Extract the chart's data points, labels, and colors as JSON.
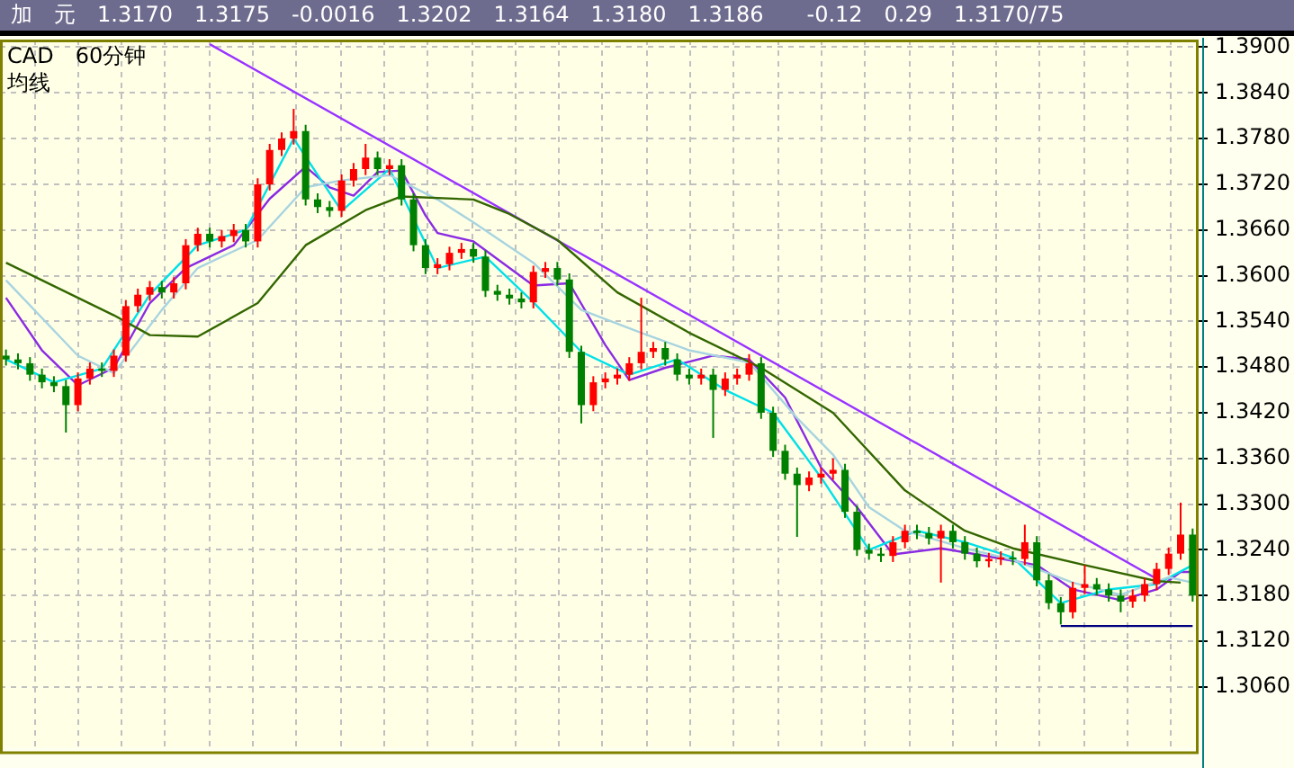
{
  "chart_data": {
    "type": "candlestick",
    "title": "加　元　1.3170　1.3175　-0.0016　1.3202　1.3164　1.3180　1.3186　　-0.12　0.29　1.3170/75",
    "annotations": [
      "CAD　60分钟",
      "均线"
    ],
    "categories": [
      null,
      null,
      null,
      null,
      null,
      null,
      null,
      null,
      null,
      null,
      null,
      null,
      null,
      null,
      null,
      null,
      null,
      null,
      null,
      null,
      null,
      null,
      null,
      null,
      null,
      null,
      null,
      null,
      null,
      null,
      null,
      null,
      null,
      null,
      null,
      null,
      null,
      null,
      null,
      null,
      null,
      null,
      null,
      null,
      null,
      null,
      null,
      null,
      null,
      null,
      null,
      null,
      null,
      null,
      null,
      null,
      null,
      null,
      null,
      null,
      null,
      null,
      null,
      null,
      null,
      null,
      null,
      null,
      null,
      null,
      null,
      null,
      null,
      null,
      null,
      null,
      null,
      null,
      null,
      null,
      null,
      null,
      null,
      null,
      null,
      null,
      null,
      null,
      null,
      null,
      null,
      null,
      null,
      null,
      null,
      null,
      null,
      null,
      null,
      null
    ],
    "ohlc": [
      [
        1.3495,
        1.3503,
        1.3482,
        1.349
      ],
      [
        1.349,
        1.3498,
        1.3477,
        1.3485
      ],
      [
        1.3485,
        1.3493,
        1.3462,
        1.347
      ],
      [
        1.347,
        1.3478,
        1.3452,
        1.346
      ],
      [
        1.346,
        1.3468,
        1.3447,
        1.3455
      ],
      [
        1.3455,
        1.3463,
        1.3394,
        1.343
      ],
      [
        1.343,
        1.3473,
        1.3422,
        1.3465
      ],
      [
        1.3465,
        1.3486,
        1.3457,
        1.3478
      ],
      [
        1.3478,
        1.3486,
        1.3467,
        1.3475
      ],
      [
        1.3475,
        1.3503,
        1.3467,
        1.3495
      ],
      [
        1.3495,
        1.3568,
        1.3487,
        1.356
      ],
      [
        1.356,
        1.3583,
        1.3552,
        1.3575
      ],
      [
        1.3575,
        1.3593,
        1.3567,
        1.3585
      ],
      [
        1.3585,
        1.3593,
        1.357,
        1.3578
      ],
      [
        1.3578,
        1.3598,
        1.357,
        1.359
      ],
      [
        1.359,
        1.3648,
        1.3582,
        1.364
      ],
      [
        1.364,
        1.3663,
        1.3632,
        1.3655
      ],
      [
        1.3655,
        1.3663,
        1.3637,
        1.3645
      ],
      [
        1.3645,
        1.366,
        1.3637,
        1.3652
      ],
      [
        1.3652,
        1.3668,
        1.3644,
        1.366
      ],
      [
        1.366,
        1.3668,
        1.3637,
        1.3645
      ],
      [
        1.3645,
        1.3728,
        1.3637,
        1.372
      ],
      [
        1.372,
        1.3773,
        1.3712,
        1.3765
      ],
      [
        1.3765,
        1.3788,
        1.3757,
        1.378
      ],
      [
        1.378,
        1.3819,
        1.3772,
        1.379
      ],
      [
        1.379,
        1.3798,
        1.3692,
        1.37
      ],
      [
        1.37,
        1.3708,
        1.3682,
        1.369
      ],
      [
        1.369,
        1.3698,
        1.3677,
        1.3685
      ],
      [
        1.3685,
        1.3733,
        1.3677,
        1.3725
      ],
      [
        1.3725,
        1.3748,
        1.3717,
        1.374
      ],
      [
        1.374,
        1.3773,
        1.3732,
        1.3755
      ],
      [
        1.3755,
        1.3763,
        1.3732,
        1.374
      ],
      [
        1.374,
        1.3753,
        1.3732,
        1.3745
      ],
      [
        1.3745,
        1.3753,
        1.3692,
        1.37
      ],
      [
        1.37,
        1.3708,
        1.3632,
        1.364
      ],
      [
        1.364,
        1.3648,
        1.3602,
        1.361
      ],
      [
        1.361,
        1.3623,
        1.3602,
        1.3615
      ],
      [
        1.3615,
        1.3638,
        1.3607,
        1.363
      ],
      [
        1.363,
        1.3643,
        1.3622,
        1.3635
      ],
      [
        1.3635,
        1.3643,
        1.3617,
        1.3625
      ],
      [
        1.3625,
        1.3633,
        1.3572,
        1.358
      ],
      [
        1.358,
        1.3588,
        1.3567,
        1.3575
      ],
      [
        1.3575,
        1.3583,
        1.3562,
        1.357
      ],
      [
        1.357,
        1.3578,
        1.3557,
        1.3565
      ],
      [
        1.3565,
        1.3613,
        1.3557,
        1.3605
      ],
      [
        1.3605,
        1.3618,
        1.3597,
        1.361
      ],
      [
        1.361,
        1.3618,
        1.3587,
        1.3595
      ],
      [
        1.3595,
        1.3603,
        1.3492,
        1.35
      ],
      [
        1.35,
        1.3508,
        1.3406,
        1.343
      ],
      [
        1.343,
        1.3468,
        1.3422,
        1.346
      ],
      [
        1.346,
        1.3473,
        1.3452,
        1.3465
      ],
      [
        1.3465,
        1.3478,
        1.3457,
        1.347
      ],
      [
        1.347,
        1.3493,
        1.3462,
        1.3485
      ],
      [
        1.3485,
        1.3571,
        1.3477,
        1.35
      ],
      [
        1.35,
        1.3513,
        1.3492,
        1.3505
      ],
      [
        1.3505,
        1.3513,
        1.3482,
        1.349
      ],
      [
        1.349,
        1.3498,
        1.3462,
        1.347
      ],
      [
        1.347,
        1.3478,
        1.3457,
        1.3465
      ],
      [
        1.3465,
        1.3478,
        1.3457,
        1.347
      ],
      [
        1.347,
        1.3478,
        1.3387,
        1.345
      ],
      [
        1.345,
        1.3473,
        1.3442,
        1.3465
      ],
      [
        1.3465,
        1.3478,
        1.3457,
        1.347
      ],
      [
        1.347,
        1.3497,
        1.3462,
        1.3485
      ],
      [
        1.3485,
        1.3493,
        1.3412,
        1.342
      ],
      [
        1.342,
        1.3428,
        1.3362,
        1.337
      ],
      [
        1.337,
        1.3378,
        1.3332,
        1.334
      ],
      [
        1.334,
        1.3348,
        1.3257,
        1.3325
      ],
      [
        1.3325,
        1.3343,
        1.3317,
        1.3335
      ],
      [
        1.3335,
        1.3348,
        1.3327,
        1.334
      ],
      [
        1.334,
        1.336,
        1.3332,
        1.3345
      ],
      [
        1.3345,
        1.3353,
        1.3282,
        1.329
      ],
      [
        1.329,
        1.3298,
        1.3232,
        1.324
      ],
      [
        1.324,
        1.3248,
        1.3227,
        1.3235
      ],
      [
        1.3235,
        1.3243,
        1.3224,
        1.3232
      ],
      [
        1.3232,
        1.3258,
        1.3224,
        1.325
      ],
      [
        1.325,
        1.3273,
        1.3242,
        1.3265
      ],
      [
        1.3265,
        1.3273,
        1.3254,
        1.3262
      ],
      [
        1.3262,
        1.327,
        1.3247,
        1.3255
      ],
      [
        1.3255,
        1.3273,
        1.3197,
        1.3265
      ],
      [
        1.3265,
        1.3273,
        1.3242,
        1.325
      ],
      [
        1.325,
        1.3258,
        1.3227,
        1.3235
      ],
      [
        1.3235,
        1.3243,
        1.3217,
        1.3225
      ],
      [
        1.3225,
        1.3236,
        1.3217,
        1.3228
      ],
      [
        1.3228,
        1.3238,
        1.322,
        1.323
      ],
      [
        1.323,
        1.3238,
        1.322,
        1.3228
      ],
      [
        1.3228,
        1.3273,
        1.322,
        1.325
      ],
      [
        1.325,
        1.3258,
        1.3192,
        1.32
      ],
      [
        1.32,
        1.3208,
        1.3162,
        1.317
      ],
      [
        1.317,
        1.3178,
        1.3142,
        1.3158
      ],
      [
        1.3158,
        1.3198,
        1.315,
        1.319
      ],
      [
        1.319,
        1.322,
        1.3182,
        1.3195
      ],
      [
        1.3195,
        1.3203,
        1.318,
        1.3188
      ],
      [
        1.3188,
        1.3196,
        1.3172,
        1.318
      ],
      [
        1.318,
        1.3188,
        1.3158,
        1.3172
      ],
      [
        1.3172,
        1.3188,
        1.3164,
        1.318
      ],
      [
        1.318,
        1.3203,
        1.3172,
        1.3195
      ],
      [
        1.3195,
        1.3223,
        1.3187,
        1.3215
      ],
      [
        1.3215,
        1.3243,
        1.3207,
        1.3235
      ],
      [
        1.3235,
        1.3302,
        1.3227,
        1.326
      ],
      [
        1.326,
        1.3268,
        1.3172,
        1.318
      ]
    ],
    "colors": [
      "#008000",
      "#008000",
      "#008000",
      "#008000",
      "#008000",
      "#008000",
      "#ff0000",
      "#ff0000",
      "#008000",
      "#ff0000",
      "#ff0000",
      "#ff0000",
      "#ff0000",
      "#008000",
      "#ff0000",
      "#ff0000",
      "#ff0000",
      "#008000",
      "#ff0000",
      "#ff0000",
      "#008000",
      "#ff0000",
      "#ff0000",
      "#ff0000",
      "#ff0000",
      "#008000",
      "#008000",
      "#008000",
      "#ff0000",
      "#ff0000",
      "#ff0000",
      "#008000",
      "#ff0000",
      "#008000",
      "#008000",
      "#008000",
      "#ff0000",
      "#ff0000",
      "#ff0000",
      "#008000",
      "#008000",
      "#008000",
      "#008000",
      "#008000",
      "#ff0000",
      "#ff0000",
      "#008000",
      "#008000",
      "#008000",
      "#ff0000",
      "#ff0000",
      "#ff0000",
      "#ff0000",
      "#ff0000",
      "#ff0000",
      "#008000",
      "#008000",
      "#008000",
      "#ff0000",
      "#008000",
      "#ff0000",
      "#ff0000",
      "#ff0000",
      "#008000",
      "#008000",
      "#008000",
      "#008000",
      "#ff0000",
      "#ff0000",
      "#ff0000",
      "#008000",
      "#008000",
      "#008000",
      "#008000",
      "#ff0000",
      "#ff0000",
      "#008000",
      "#008000",
      "#ff0000",
      "#008000",
      "#008000",
      "#008000",
      "#ff0000",
      "#ff0000",
      "#008000",
      "#ff0000",
      "#008000",
      "#008000",
      "#008000",
      "#ff0000",
      "#ff0000",
      "#008000",
      "#008000",
      "#008000",
      "#ff0000",
      "#ff0000",
      "#ff0000",
      "#ff0000",
      "#ff0000",
      "#008000"
    ],
    "series": [
      {
        "type": "line",
        "color": "#336600",
        "values": [
          1.3617,
          null,
          null,
          null,
          null,
          null,
          null,
          null,
          null,
          1.3548,
          null,
          null,
          1.3522,
          null,
          null,
          null,
          1.352,
          null,
          null,
          null,
          null,
          1.3564,
          null,
          null,
          null,
          1.364,
          null,
          null,
          null,
          null,
          1.3686,
          null,
          null,
          1.3704,
          null,
          null,
          null,
          null,
          null,
          1.37,
          null,
          null,
          1.3681,
          null,
          null,
          null,
          1.3647,
          null,
          null,
          null,
          null,
          1.3578,
          null,
          null,
          null,
          null,
          null,
          1.3525,
          null,
          null,
          null,
          null,
          null,
          1.3479,
          null,
          null,
          null,
          null,
          null,
          1.342,
          null,
          null,
          null,
          null,
          null,
          1.3318,
          null,
          null,
          null,
          null,
          1.3265,
          null,
          null,
          null,
          1.3242,
          null,
          null,
          null,
          null,
          null,
          1.322,
          null,
          null,
          null,
          null,
          null,
          1.3199,
          null,
          1.3197,
          null
        ]
      },
      {
        "type": "line",
        "color": "#a8d4e0",
        "values": [
          1.3594,
          null,
          null,
          null,
          null,
          null,
          1.3495,
          null,
          null,
          1.3472,
          null,
          null,
          null,
          1.3555,
          null,
          null,
          1.361,
          null,
          null,
          null,
          null,
          1.3647,
          null,
          null,
          null,
          1.3716,
          null,
          null,
          1.3725,
          null,
          null,
          null,
          1.3732,
          null,
          null,
          null,
          1.37,
          null,
          null,
          1.367,
          null,
          null,
          null,
          null,
          1.3617,
          null,
          null,
          null,
          1.3555,
          null,
          null,
          null,
          null,
          1.3525,
          null,
          null,
          null,
          1.3502,
          null,
          null,
          null,
          null,
          1.3486,
          null,
          null,
          null,
          1.3413,
          null,
          null,
          1.3365,
          null,
          null,
          1.3296,
          null,
          null,
          1.3265,
          null,
          null,
          null,
          null,
          1.3242,
          null,
          null,
          null,
          1.3227,
          null,
          null,
          null,
          null,
          1.3197,
          null,
          null,
          null,
          1.3181,
          null,
          null,
          null,
          1.3204,
          null,
          1.3197
        ]
      },
      {
        "type": "line",
        "color": "#00e0e8",
        "values": [
          1.349,
          null,
          null,
          null,
          1.346,
          null,
          null,
          null,
          1.3478,
          null,
          null,
          null,
          1.3575,
          null,
          null,
          null,
          1.364,
          null,
          null,
          null,
          1.366,
          null,
          null,
          null,
          1.378,
          null,
          null,
          null,
          1.3685,
          null,
          null,
          null,
          1.374,
          null,
          null,
          null,
          1.361,
          null,
          null,
          null,
          1.3625,
          null,
          null,
          null,
          1.3565,
          null,
          null,
          null,
          1.35,
          null,
          null,
          null,
          1.347,
          null,
          null,
          null,
          1.349,
          null,
          null,
          null,
          1.345,
          null,
          null,
          null,
          1.342,
          null,
          null,
          null,
          1.3335,
          null,
          null,
          null,
          1.324,
          null,
          null,
          null,
          1.3265,
          null,
          null,
          null,
          1.325,
          null,
          null,
          null,
          1.323,
          null,
          null,
          null,
          1.317,
          null,
          null,
          null,
          1.3188,
          null,
          null,
          null,
          1.3195,
          null,
          null,
          1.322
        ]
      },
      {
        "type": "line",
        "color": "#8a2be2",
        "values": [
          1.3571,
          null,
          null,
          1.3502,
          null,
          null,
          1.3456,
          null,
          null,
          1.3479,
          null,
          null,
          1.3564,
          null,
          null,
          1.361,
          null,
          null,
          null,
          1.364,
          null,
          null,
          1.3701,
          null,
          null,
          1.3743,
          null,
          1.3716,
          null,
          1.3705,
          null,
          1.3736,
          null,
          1.3738,
          null,
          1.3679,
          1.3656,
          null,
          null,
          1.3645,
          null,
          null,
          null,
          null,
          1.3587,
          null,
          null,
          1.359,
          null,
          null,
          1.3509,
          null,
          1.3463,
          null,
          null,
          1.3479,
          null,
          null,
          null,
          1.3495,
          null,
          null,
          1.349,
          null,
          null,
          1.344,
          null,
          null,
          1.3348,
          null,
          null,
          1.3296,
          null,
          null,
          1.3234,
          null,
          null,
          null,
          1.3242,
          null,
          null,
          1.3234,
          null,
          null,
          null,
          null,
          1.322,
          null,
          null,
          1.3188,
          null,
          null,
          null,
          1.3174,
          null,
          null,
          1.3188,
          null,
          1.3211,
          1.3211
        ]
      },
      {
        "type": "line",
        "color": "#9933ff",
        "values": [
          null,
          null,
          null,
          null,
          null,
          null,
          null,
          null,
          null,
          null,
          null,
          null,
          null,
          null,
          null,
          null,
          null,
          1.3904,
          null,
          null,
          null,
          null,
          null,
          null,
          null,
          null,
          null,
          null,
          null,
          null,
          null,
          null,
          null,
          null,
          null,
          null,
          null,
          null,
          null,
          null,
          null,
          null,
          null,
          null,
          null,
          null,
          null,
          null,
          null,
          null,
          null,
          null,
          null,
          null,
          null,
          null,
          null,
          null,
          null,
          null,
          null,
          null,
          null,
          null,
          null,
          null,
          null,
          null,
          null,
          null,
          null,
          null,
          null,
          null,
          null,
          null,
          null,
          null,
          null,
          null,
          null,
          null,
          null,
          null,
          null,
          null,
          null,
          null,
          null,
          null,
          null,
          null,
          null,
          null,
          null,
          null,
          1.3202,
          null,
          null,
          null
        ]
      },
      {
        "type": "line",
        "color": "#000080",
        "values": [
          null,
          null,
          null,
          null,
          null,
          null,
          null,
          null,
          null,
          null,
          null,
          null,
          null,
          null,
          null,
          null,
          null,
          null,
          null,
          null,
          null,
          null,
          null,
          null,
          null,
          null,
          null,
          null,
          null,
          null,
          null,
          null,
          null,
          null,
          null,
          null,
          null,
          null,
          null,
          null,
          null,
          null,
          null,
          null,
          null,
          null,
          null,
          null,
          null,
          null,
          null,
          null,
          null,
          null,
          null,
          null,
          null,
          null,
          null,
          null,
          null,
          null,
          null,
          null,
          null,
          null,
          null,
          null,
          null,
          null,
          null,
          null,
          null,
          null,
          null,
          null,
          null,
          null,
          null,
          null,
          null,
          null,
          null,
          null,
          null,
          null,
          null,
          null,
          1.314,
          1.314,
          1.314,
          1.314,
          1.314,
          1.314,
          1.314,
          1.314,
          1.314,
          1.314,
          1.314,
          1.314
        ]
      }
    ],
    "ylim": [
      1.298,
      1.391
    ],
    "yticks": [
      {
        "value": 1.39,
        "label": "1.3900"
      },
      {
        "value": 1.384,
        "label": "1.3840"
      },
      {
        "value": 1.378,
        "label": "1.3780"
      },
      {
        "value": 1.372,
        "label": "1.3720"
      },
      {
        "value": 1.366,
        "label": "1.3660"
      },
      {
        "value": 1.36,
        "label": "1.3600"
      },
      {
        "value": 1.354,
        "label": "1.3540"
      },
      {
        "value": 1.348,
        "label": "1.3480"
      },
      {
        "value": 1.342,
        "label": "1.3420"
      },
      {
        "value": 1.336,
        "label": "1.3360"
      },
      {
        "value": 1.33,
        "label": "1.3300"
      },
      {
        "value": 1.324,
        "label": "1.3240"
      },
      {
        "value": 1.318,
        "label": "1.3180"
      },
      {
        "value": 1.312,
        "label": "1.3120"
      },
      {
        "value": 1.306,
        "label": "1.3060"
      }
    ],
    "grid": true,
    "legend": false,
    "marker": "none",
    "tick_labels": "y"
  }
}
